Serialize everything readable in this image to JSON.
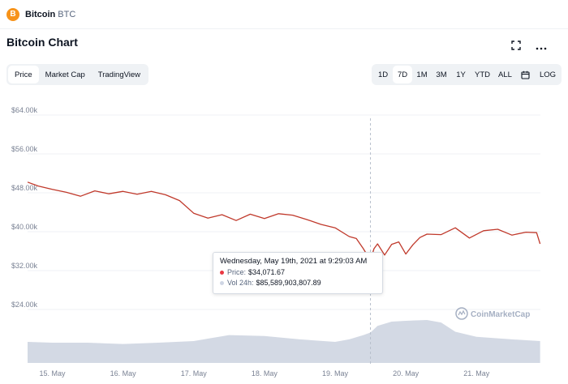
{
  "header": {
    "coin_name": "Bitcoin",
    "coin_symbol": "BTC",
    "logo_glyph": "B"
  },
  "chart_title": "Bitcoin Chart",
  "icons": {
    "expand": "fullscreen-icon",
    "more": "more-options-icon",
    "calendar": "calendar-icon",
    "coin_logo": "bitcoin-logo-icon"
  },
  "tabs": [
    {
      "label": "Price",
      "active": true
    },
    {
      "label": "Market Cap",
      "active": false
    },
    {
      "label": "TradingView",
      "active": false
    }
  ],
  "ranges": [
    {
      "label": "1D",
      "active": false
    },
    {
      "label": "7D",
      "active": true
    },
    {
      "label": "1M",
      "active": false
    },
    {
      "label": "3M",
      "active": false
    },
    {
      "label": "1Y",
      "active": false
    },
    {
      "label": "YTD",
      "active": false
    },
    {
      "label": "ALL",
      "active": false
    },
    {
      "label": "",
      "icon": "calendar-icon",
      "active": false
    },
    {
      "label": "LOG",
      "active": false
    }
  ],
  "watermark": "CoinMarketCap",
  "tooltip": {
    "date": "Wednesday, May 19th, 2021 at 9:29:03 AM",
    "price_label": "Price:",
    "price_value": "$34,071.67",
    "vol_label": "Vol 24h:",
    "vol_value": "$85,589,903,807.89"
  },
  "colors": {
    "price_line": "#c0392b",
    "volume_fill": "#d3d9e4",
    "grid": "#eff2f5",
    "tooltip_price_dot": "#ea3943",
    "tooltip_vol_dot": "#cfd6e4"
  },
  "chart_data": {
    "type": "line",
    "x_labels": [
      "15. May",
      "16. May",
      "17. May",
      "18. May",
      "19. May",
      "20. May",
      "21. May"
    ],
    "y_ticks": [
      64000,
      56000,
      48000,
      40000,
      32000,
      24000
    ],
    "y_tick_labels": [
      "$64.00k",
      "$56.00k",
      "$48.00k",
      "$40.00k",
      "$32.00k",
      "$24.00k"
    ],
    "ylim": [
      18000,
      64000
    ],
    "xlim": [
      14.65,
      21.95
    ],
    "price": {
      "x": [
        14.65,
        14.8,
        15.0,
        15.2,
        15.4,
        15.6,
        15.8,
        16.0,
        16.2,
        16.4,
        16.6,
        16.8,
        17.0,
        17.2,
        17.4,
        17.6,
        17.8,
        18.0,
        18.2,
        18.4,
        18.6,
        18.8,
        19.0,
        19.2,
        19.3,
        19.4,
        19.5,
        19.55,
        19.6,
        19.7,
        19.8,
        19.9,
        20.0,
        20.1,
        20.2,
        20.3,
        20.5,
        20.7,
        20.9,
        21.1,
        21.3,
        21.5,
        21.7,
        21.85,
        21.9
      ],
      "y": [
        50200,
        49400,
        48700,
        48100,
        47300,
        48400,
        47800,
        48300,
        47700,
        48300,
        47600,
        46400,
        43800,
        42800,
        43500,
        42300,
        43600,
        42700,
        43700,
        43400,
        42500,
        41500,
        40800,
        39000,
        38600,
        36500,
        34071.67,
        36500,
        37500,
        35200,
        37400,
        37900,
        35400,
        37300,
        38800,
        39500,
        39400,
        40800,
        38700,
        40200,
        40500,
        39300,
        39900,
        39800,
        37500
      ]
    },
    "tooltip_point": {
      "x": 19.5,
      "y": 34071.67
    },
    "hover_x": 19.5,
    "volume": {
      "x": [
        14.65,
        15.0,
        15.5,
        16.0,
        16.5,
        17.0,
        17.5,
        18.0,
        18.5,
        19.0,
        19.2,
        19.4,
        19.5,
        19.6,
        19.8,
        20.0,
        20.3,
        20.5,
        20.7,
        21.0,
        21.5,
        21.9
      ],
      "y": [
        0.5,
        0.48,
        0.48,
        0.45,
        0.48,
        0.52,
        0.66,
        0.64,
        0.56,
        0.5,
        0.56,
        0.66,
        0.72,
        0.88,
        0.98,
        1.0,
        1.02,
        0.96,
        0.74,
        0.62,
        0.56,
        0.52
      ]
    }
  }
}
